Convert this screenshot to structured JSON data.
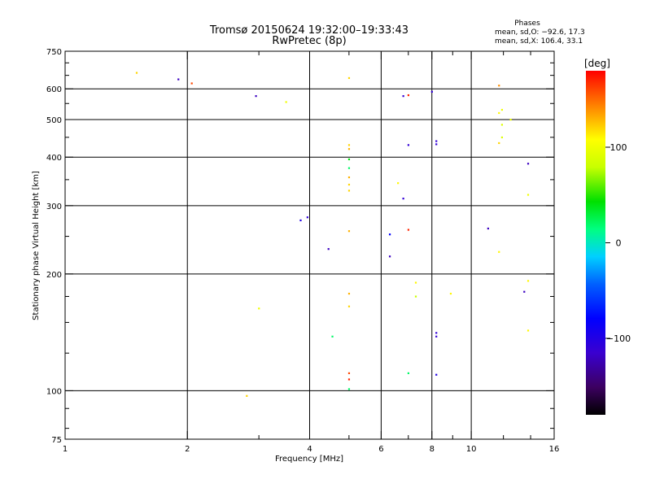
{
  "chart_data": {
    "type": "scatter",
    "title_line1": "Tromsø 20150624 19:32:00–19:33:43",
    "title_line2": "RwPretec (8p)",
    "phases": {
      "heading": "Phases",
      "o_line": "mean, sd,O: −92.6, 17.3",
      "x_line": "mean, sd,X: 106.4, 33.1"
    },
    "xlabel": "Frequency [MHz]",
    "ylabel": "Stationary phase Virtual Height [km]",
    "x_scale": "log",
    "y_scale": "log",
    "xlim": [
      1,
      16
    ],
    "ylim": [
      75,
      750
    ],
    "x_ticks": [
      {
        "value": 1,
        "label": "1"
      },
      {
        "value": 2,
        "label": "2"
      },
      {
        "value": 4,
        "label": "4"
      },
      {
        "value": 6,
        "label": "6"
      },
      {
        "value": 8,
        "label": "8"
      },
      {
        "value": 10,
        "label": "10"
      },
      {
        "value": 16,
        "label": "16"
      }
    ],
    "x_minor_ticks": [
      3,
      5,
      7,
      9,
      12,
      14
    ],
    "y_ticks": [
      {
        "value": 75,
        "label": "75"
      },
      {
        "value": 100,
        "label": "100"
      },
      {
        "value": 200,
        "label": "200"
      },
      {
        "value": 300,
        "label": "300"
      },
      {
        "value": 400,
        "label": "400"
      },
      {
        "value": 500,
        "label": "500"
      },
      {
        "value": 600,
        "label": "600"
      },
      {
        "value": 750,
        "label": "750"
      }
    ],
    "y_minor_ticks": [
      80,
      90,
      125,
      150,
      175,
      250,
      350,
      450,
      550,
      650,
      700
    ],
    "grid_x": [
      2,
      4,
      6,
      8,
      10
    ],
    "grid_y": [
      100,
      200,
      300,
      400,
      500,
      600
    ],
    "grid": true,
    "colorbar": {
      "label": "[deg]",
      "min": -180,
      "max": 180,
      "ticks": [
        {
          "value": 100,
          "label": "100"
        },
        {
          "value": 0,
          "label": "0"
        },
        {
          "value": -100,
          "label": "−100"
        }
      ]
    },
    "points": [
      {
        "x": 1.5,
        "y": 660,
        "c": 120
      },
      {
        "x": 1.9,
        "y": 635,
        "c": -120
      },
      {
        "x": 2.05,
        "y": 620,
        "c": 160
      },
      {
        "x": 2.95,
        "y": 575,
        "c": -120
      },
      {
        "x": 3.5,
        "y": 555,
        "c": 100
      },
      {
        "x": 2.8,
        "y": 97,
        "c": 120
      },
      {
        "x": 3.0,
        "y": 163,
        "c": 100
      },
      {
        "x": 4.45,
        "y": 232,
        "c": -120
      },
      {
        "x": 4.55,
        "y": 138,
        "c": 20
      },
      {
        "x": 3.95,
        "y": 280,
        "c": -110
      },
      {
        "x": 3.8,
        "y": 275,
        "c": -100
      },
      {
        "x": 5.0,
        "y": 640,
        "c": 120
      },
      {
        "x": 5.0,
        "y": 430,
        "c": 120
      },
      {
        "x": 5.0,
        "y": 420,
        "c": 130
      },
      {
        "x": 5.0,
        "y": 395,
        "c": 40
      },
      {
        "x": 5.0,
        "y": 375,
        "c": 20
      },
      {
        "x": 5.0,
        "y": 355,
        "c": 130
      },
      {
        "x": 5.0,
        "y": 340,
        "c": 120
      },
      {
        "x": 5.0,
        "y": 328,
        "c": 120
      },
      {
        "x": 5.0,
        "y": 258,
        "c": 130
      },
      {
        "x": 5.0,
        "y": 178,
        "c": 130
      },
      {
        "x": 5.0,
        "y": 165,
        "c": 120
      },
      {
        "x": 5.0,
        "y": 111,
        "c": 160
      },
      {
        "x": 5.0,
        "y": 107,
        "c": 170
      },
      {
        "x": 5.0,
        "y": 101,
        "c": 20
      },
      {
        "x": 6.3,
        "y": 253,
        "c": -80
      },
      {
        "x": 6.3,
        "y": 222,
        "c": -120
      },
      {
        "x": 6.6,
        "y": 343,
        "c": 110
      },
      {
        "x": 6.8,
        "y": 575,
        "c": -110
      },
      {
        "x": 6.8,
        "y": 313,
        "c": -110
      },
      {
        "x": 7.0,
        "y": 578,
        "c": 170
      },
      {
        "x": 7.0,
        "y": 430,
        "c": -110
      },
      {
        "x": 7.0,
        "y": 260,
        "c": 170
      },
      {
        "x": 7.0,
        "y": 111,
        "c": 20
      },
      {
        "x": 7.3,
        "y": 190,
        "c": 110
      },
      {
        "x": 7.3,
        "y": 175,
        "c": 80
      },
      {
        "x": 8.0,
        "y": 590,
        "c": -110
      },
      {
        "x": 8.2,
        "y": 440,
        "c": -110
      },
      {
        "x": 8.2,
        "y": 432,
        "c": -110
      },
      {
        "x": 8.2,
        "y": 141,
        "c": -110
      },
      {
        "x": 8.2,
        "y": 138,
        "c": -110
      },
      {
        "x": 8.2,
        "y": 110,
        "c": -100
      },
      {
        "x": 8.9,
        "y": 178,
        "c": 110
      },
      {
        "x": 11.0,
        "y": 262,
        "c": -120
      },
      {
        "x": 11.7,
        "y": 612,
        "c": 140
      },
      {
        "x": 11.7,
        "y": 520,
        "c": 110
      },
      {
        "x": 11.9,
        "y": 530,
        "c": 100
      },
      {
        "x": 11.7,
        "y": 435,
        "c": 120
      },
      {
        "x": 11.9,
        "y": 450,
        "c": 90
      },
      {
        "x": 11.9,
        "y": 485,
        "c": 90
      },
      {
        "x": 11.7,
        "y": 228,
        "c": 110
      },
      {
        "x": 12.5,
        "y": 500,
        "c": 100
      },
      {
        "x": 13.5,
        "y": 180,
        "c": -120
      },
      {
        "x": 13.8,
        "y": 385,
        "c": -120
      },
      {
        "x": 13.8,
        "y": 320,
        "c": 100
      },
      {
        "x": 13.8,
        "y": 192,
        "c": 110
      },
      {
        "x": 13.8,
        "y": 143,
        "c": 110
      }
    ]
  }
}
